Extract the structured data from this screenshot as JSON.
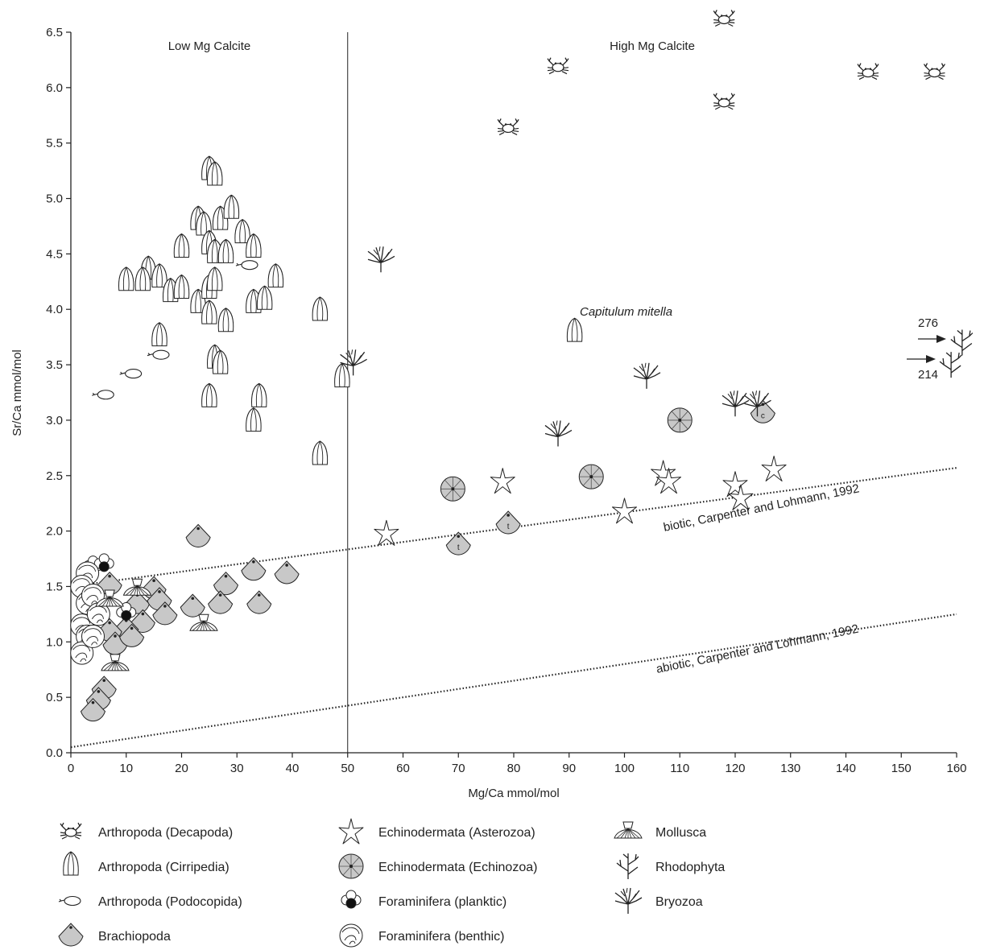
{
  "chart_data": {
    "type": "scatter",
    "xlabel": "Mg/Ca mmol/mol",
    "ylabel": "Sr/Ca mmol/mol",
    "xlim": [
      0,
      160
    ],
    "ylim": [
      0,
      6.5
    ],
    "xticks": [
      0,
      10,
      20,
      30,
      40,
      50,
      60,
      70,
      80,
      90,
      100,
      110,
      120,
      130,
      140,
      150,
      160
    ],
    "yticks": [
      "0.0",
      "0.5",
      "1.0",
      "1.5",
      "2.0",
      "2.5",
      "3.0",
      "3.5",
      "4.0",
      "4.5",
      "5.0",
      "5.5",
      "6.0",
      "6.5"
    ],
    "grid": false,
    "region_labels": [
      "Low Mg Calcite",
      "High Mg Calcite"
    ],
    "divider_x": 50,
    "reference_lines": [
      {
        "label": "biotic, Carpenter and Lohmann, 1992",
        "x": [
          0,
          160
        ],
        "y": [
          1.5,
          2.57
        ]
      },
      {
        "label": "abiotic, Carpenter and Lohmann, 1992",
        "x": [
          0,
          160
        ],
        "y": [
          0.05,
          1.25
        ]
      }
    ],
    "annotations": [
      {
        "text": "Capitulum mitella",
        "x": 91,
        "y": 3.98
      },
      {
        "text": "276",
        "x": 153,
        "y": 3.75
      },
      {
        "text": "214",
        "x": 153,
        "y": 3.5
      }
    ],
    "legend_placement": "bottom",
    "series": [
      {
        "name": "Arthropoda (Decapoda)",
        "marker": "crab-icon",
        "points": [
          [
            118,
            6.62
          ],
          [
            88,
            6.19
          ],
          [
            79,
            5.64
          ],
          [
            118,
            5.87
          ],
          [
            144,
            6.14
          ],
          [
            156,
            6.14
          ]
        ]
      },
      {
        "name": "Arthropoda (Cirripedia)",
        "marker": "barnacle-icon",
        "points": [
          [
            25,
            5.25
          ],
          [
            26,
            5.2
          ],
          [
            23,
            4.8
          ],
          [
            24,
            4.75
          ],
          [
            27,
            4.8
          ],
          [
            29,
            4.9
          ],
          [
            31,
            4.68
          ],
          [
            20,
            4.55
          ],
          [
            25,
            4.58
          ],
          [
            26,
            4.5
          ],
          [
            28,
            4.5
          ],
          [
            33,
            4.55
          ],
          [
            10,
            4.25
          ],
          [
            14,
            4.35
          ],
          [
            13,
            4.25
          ],
          [
            16,
            4.28
          ],
          [
            18,
            4.15
          ],
          [
            20,
            4.18
          ],
          [
            23,
            4.05
          ],
          [
            25,
            4.18
          ],
          [
            26,
            4.25
          ],
          [
            25,
            3.95
          ],
          [
            28,
            3.88
          ],
          [
            33,
            4.05
          ],
          [
            35,
            4.08
          ],
          [
            37,
            4.28
          ],
          [
            45,
            3.98
          ],
          [
            16,
            3.75
          ],
          [
            26,
            3.55
          ],
          [
            27,
            3.5
          ],
          [
            25,
            3.2
          ],
          [
            34,
            3.2
          ],
          [
            33,
            2.98
          ],
          [
            45,
            2.68
          ],
          [
            49,
            3.38
          ],
          [
            91,
            3.79
          ]
        ]
      },
      {
        "name": "Arthropoda (Podocopida)",
        "marker": "ostracod-icon",
        "points": [
          [
            32,
            4.4
          ],
          [
            16,
            3.59
          ],
          [
            11,
            3.42
          ],
          [
            6,
            3.23
          ]
        ]
      },
      {
        "name": "Brachiopoda",
        "marker": "brachiopod-icon",
        "points": [
          [
            23,
            1.95
          ],
          [
            33,
            1.65
          ],
          [
            39,
            1.62
          ],
          [
            28,
            1.52
          ],
          [
            22,
            1.32
          ],
          [
            27,
            1.35
          ],
          [
            34,
            1.35
          ],
          [
            15,
            1.48
          ],
          [
            7,
            1.52
          ],
          [
            12,
            1.35
          ],
          [
            16,
            1.38
          ],
          [
            13,
            1.18
          ],
          [
            17,
            1.25
          ],
          [
            10,
            1.12
          ],
          [
            7,
            1.1
          ],
          [
            8,
            0.98
          ],
          [
            11,
            1.05
          ],
          [
            6,
            0.58
          ],
          [
            5,
            0.48
          ],
          [
            4,
            0.38
          ],
          [
            70,
            1.88
          ],
          [
            79,
            2.07
          ],
          [
            125,
            3.07
          ]
        ]
      },
      {
        "name": "Echinodermata (Asterozoa)",
        "marker": "starfish-icon",
        "points": [
          [
            57,
            1.98
          ],
          [
            78,
            2.45
          ],
          [
            100,
            2.18
          ],
          [
            107,
            2.52
          ],
          [
            108,
            2.45
          ],
          [
            120,
            2.42
          ],
          [
            121,
            2.3
          ],
          [
            127,
            2.56
          ]
        ]
      },
      {
        "name": "Echinodermata (Echinozoa)",
        "marker": "urchin-icon",
        "points": [
          [
            69,
            2.38
          ],
          [
            94,
            2.49
          ],
          [
            110,
            3.0
          ]
        ]
      },
      {
        "name": "Foraminifera (planktic)",
        "marker": "planktic-foram-icon",
        "points": [
          [
            4,
            1.68
          ],
          [
            6,
            1.7
          ],
          [
            10,
            1.26
          ]
        ]
      },
      {
        "name": "Foraminifera (benthic)",
        "marker": "benthic-foram-icon",
        "points": [
          [
            3,
            1.62
          ],
          [
            2,
            1.5
          ],
          [
            3,
            1.35
          ],
          [
            2,
            1.15
          ],
          [
            3,
            1.05
          ],
          [
            2,
            0.9
          ],
          [
            4,
            1.42
          ],
          [
            5,
            1.25
          ],
          [
            4,
            1.05
          ]
        ]
      },
      {
        "name": "Mollusca",
        "marker": "scallop-icon",
        "points": [
          [
            12,
            1.48
          ],
          [
            7,
            1.38
          ],
          [
            24,
            1.16
          ],
          [
            8,
            0.8
          ]
        ]
      },
      {
        "name": "Rhodophyta",
        "marker": "alga-icon",
        "points": [
          [
            161,
            3.7
          ],
          [
            159,
            3.5
          ]
        ]
      },
      {
        "name": "Bryozoa",
        "marker": "bryozoan-icon",
        "points": [
          [
            56,
            4.45
          ],
          [
            51,
            3.52
          ],
          [
            104,
            3.4
          ],
          [
            88,
            2.88
          ],
          [
            120,
            3.15
          ],
          [
            124,
            3.15
          ]
        ]
      }
    ]
  }
}
